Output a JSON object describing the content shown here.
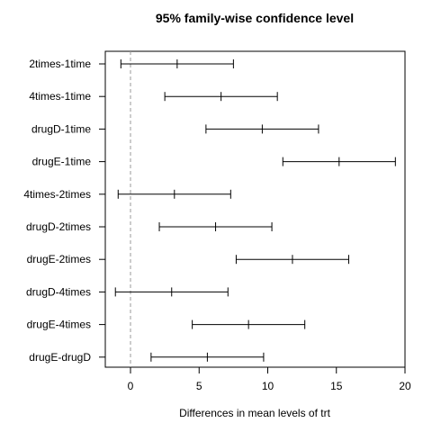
{
  "chart_data": {
    "type": "errorbar",
    "title": "95% family-wise confidence level",
    "xlabel": "Differences in mean levels of trt",
    "ylabel": "",
    "xlim": [
      -1.8,
      20.0
    ],
    "xticks": [
      0,
      5,
      10,
      15,
      20
    ],
    "xtick_labels": [
      "0",
      "5",
      "10",
      "15",
      "20"
    ],
    "reference_line": 0,
    "comparisons": [
      {
        "label": "2times-1time",
        "lwr": -0.7,
        "diff": 3.4,
        "upr": 7.5
      },
      {
        "label": "4times-1time",
        "lwr": 2.5,
        "diff": 6.6,
        "upr": 10.7
      },
      {
        "label": "drugD-1time",
        "lwr": 5.5,
        "diff": 9.6,
        "upr": 13.7
      },
      {
        "label": "drugE-1time",
        "lwr": 11.1,
        "diff": 15.2,
        "upr": 19.3
      },
      {
        "label": "4times-2times",
        "lwr": -0.9,
        "diff": 3.2,
        "upr": 7.3
      },
      {
        "label": "drugD-2times",
        "lwr": 2.1,
        "diff": 6.2,
        "upr": 10.3
      },
      {
        "label": "drugE-2times",
        "lwr": 7.7,
        "diff": 11.8,
        "upr": 15.9
      },
      {
        "label": "drugD-4times",
        "lwr": -1.1,
        "diff": 3.0,
        "upr": 7.1
      },
      {
        "label": "drugE-4times",
        "lwr": 4.5,
        "diff": 8.6,
        "upr": 12.7
      },
      {
        "label": "drugE-drugD",
        "lwr": 1.5,
        "diff": 5.6,
        "upr": 9.7
      }
    ],
    "grid": false,
    "legend": "none"
  }
}
